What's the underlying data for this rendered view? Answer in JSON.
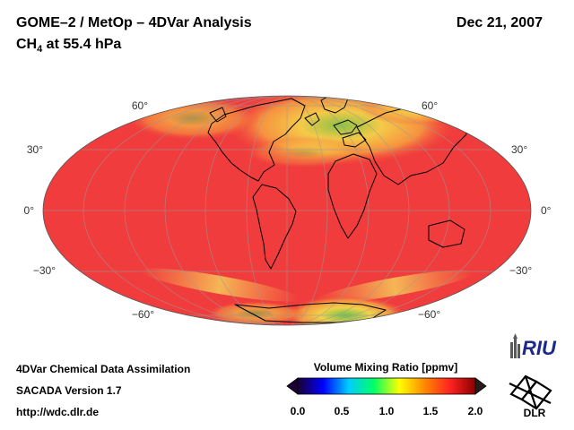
{
  "header": {
    "title": "GOME–2 / MetOp – 4DVar Analysis",
    "subtitle_main": "CH",
    "subtitle_sub": "4",
    "subtitle_rest": " at 55.4 hPa",
    "date": "Dec 21, 2007"
  },
  "map": {
    "projection": "Mollweide",
    "lat_labels_left": [
      "60°",
      "30°",
      "0°",
      "−30°",
      "−60°"
    ],
    "lat_labels_right": [
      "60°",
      "30°",
      "0°",
      "−30°",
      "−60°"
    ],
    "gridlines": true,
    "background_color": "#f03c3c",
    "enhanced_zones": [
      "northern high latitudes (yellow/green)",
      "antarctic edge (yellow/green)"
    ]
  },
  "colorbar": {
    "title": "Volume Mixing Ratio [ppmv]",
    "ticks": [
      "0.0",
      "0.5",
      "1.0",
      "1.5",
      "2.0"
    ],
    "min": 0.0,
    "max": 2.0,
    "colors": [
      "#1a0033",
      "#0000ff",
      "#00ccff",
      "#00ff66",
      "#ffff00",
      "#ff8800",
      "#ff2222",
      "#8b0000"
    ]
  },
  "footer": {
    "line1": "4DVar Chemical Data Assimilation",
    "line2": "SACADA Version 1.7",
    "line3": "http://wdc.dlr.de"
  },
  "logos": {
    "riu": "RIU",
    "dlr": "DLR"
  }
}
